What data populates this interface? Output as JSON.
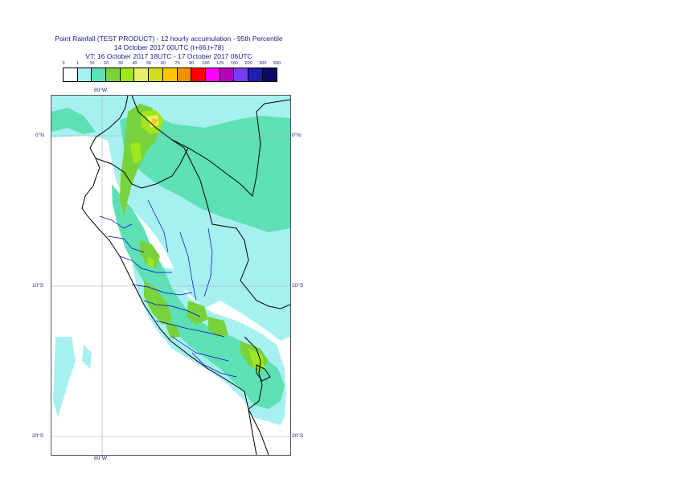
{
  "title": {
    "line1": "Point Rainfall (TEST PRODUCT) - 12 hourly accumulation - 95th Percentile",
    "line2": "14 October 2017 00UTC (t+66,t+78)",
    "line3": "VT: 16 October 2017 18UTC - 17 October 2017 06UTC"
  },
  "legend": {
    "thresholds": [
      "0",
      "1",
      "10",
      "20",
      "30",
      "40",
      "50",
      "60",
      "70",
      "80",
      "100",
      "125",
      "150",
      "200",
      "300",
      "500"
    ],
    "colors": [
      "#ffffff",
      "#a6f0f0",
      "#5ee0b4",
      "#78d23c",
      "#a0e61e",
      "#e6f064",
      "#d2dc1e",
      "#ffc800",
      "#ff8c00",
      "#ff0000",
      "#ff00ff",
      "#b400b4",
      "#783cf0",
      "#1e1eb4",
      "#0a0a64"
    ]
  },
  "map": {
    "lon_labels": {
      "top": "80°W",
      "bottom": "80°W"
    },
    "lat_labels": {
      "eq": "0°N",
      "s10": "10°S",
      "s20": "20°S"
    },
    "colors": {
      "ocean": "#ffffff",
      "light": "#a6f0f0",
      "medium": "#5ee0b4",
      "green": "#78d23c",
      "lime": "#a0e61e",
      "yellow": "#e6f064",
      "gridline": "#aaaaaa",
      "country_border": "#000000",
      "region_border": "#0000c8"
    }
  }
}
